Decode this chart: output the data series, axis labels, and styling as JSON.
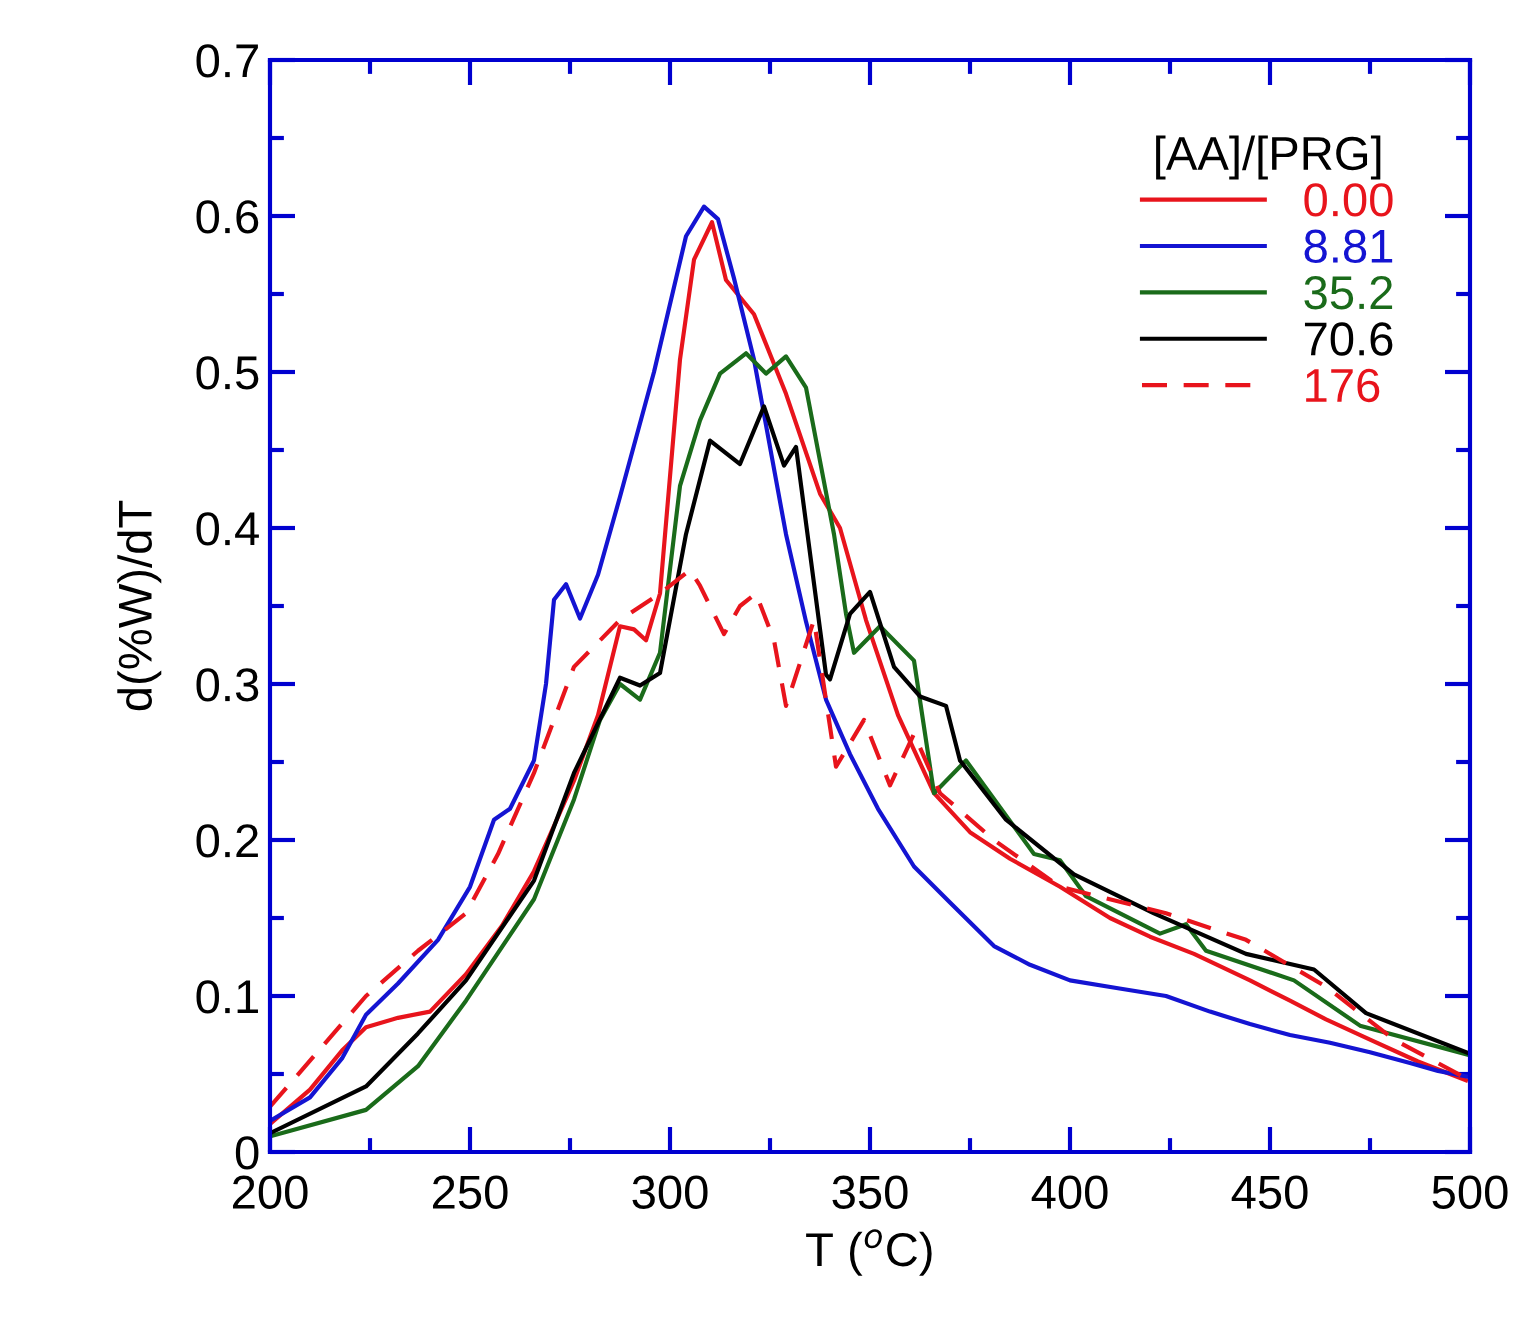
{
  "chart_data": {
    "type": "line",
    "xlabel": "T ($^{o}$C)",
    "ylabel": "d(%W)/dT",
    "legend_title": "[AA]/[PRG]",
    "legend": "top right",
    "grid": false,
    "marker": "none",
    "xlim": [
      200,
      500
    ],
    "xticks": [
      200,
      250,
      300,
      350,
      400,
      450,
      500
    ],
    "ylim": [
      0,
      0.7
    ],
    "yticks": [
      0,
      0.1,
      0.2,
      0.3,
      0.4,
      0.5,
      0.6,
      0.7
    ],
    "series": [
      {
        "name": "0.00",
        "color": "#e8141c",
        "line_style": "solid",
        "x": [
          200,
          210,
          218,
          224,
          232,
          240,
          249,
          258,
          266,
          276,
          282,
          287.5,
          291,
          294,
          297.5,
          302.5,
          306,
          310.5,
          314,
          321,
          329,
          337.5,
          342.5,
          349,
          357,
          366,
          375,
          385,
          397.5,
          410,
          420,
          431,
          445,
          455,
          464,
          475,
          487,
          499
        ],
        "values": [
          0.018,
          0.04,
          0.065,
          0.08,
          0.086,
          0.09,
          0.114,
          0.145,
          0.18,
          0.238,
          0.28,
          0.337,
          0.335,
          0.328,
          0.358,
          0.508,
          0.572,
          0.596,
          0.559,
          0.537,
          0.486,
          0.422,
          0.4,
          0.341,
          0.28,
          0.23,
          0.205,
          0.188,
          0.17,
          0.15,
          0.138,
          0.127,
          0.11,
          0.097,
          0.085,
          0.072,
          0.058,
          0.046
        ]
      },
      {
        "name": "8.81",
        "color": "#1414d2",
        "line_style": "solid",
        "x": [
          200,
          210,
          218,
          224,
          232,
          242,
          250,
          256,
          260,
          266,
          269,
          271,
          274,
          277.5,
          282,
          287.5,
          296,
          304,
          308.5,
          312,
          316,
          321,
          329,
          334,
          339,
          345,
          352,
          361,
          370,
          381,
          390,
          400,
          412,
          424,
          435,
          445,
          455,
          465,
          475,
          485,
          492,
          500
        ],
        "values": [
          0.02,
          0.035,
          0.06,
          0.088,
          0.108,
          0.136,
          0.17,
          0.213,
          0.22,
          0.251,
          0.3,
          0.354,
          0.364,
          0.342,
          0.37,
          0.42,
          0.5,
          0.587,
          0.606,
          0.598,
          0.56,
          0.508,
          0.396,
          0.34,
          0.29,
          0.255,
          0.22,
          0.183,
          0.16,
          0.132,
          0.12,
          0.11,
          0.105,
          0.1,
          0.09,
          0.082,
          0.075,
          0.07,
          0.064,
          0.057,
          0.052,
          0.048
        ]
      },
      {
        "name": "35.2",
        "color": "#1a6b1a",
        "line_style": "solid",
        "x": [
          200,
          224,
          237,
          249,
          266,
          276,
          282.5,
          287.5,
          292.5,
          297.5,
          302.5,
          307.5,
          312.5,
          319,
          324,
          329,
          334,
          341,
          344,
          346,
          352.5,
          361,
          366,
          374,
          391,
          397.5,
          404,
          422.5,
          429,
          434,
          456,
          472.5,
          500
        ],
        "values": [
          0.01,
          0.027,
          0.055,
          0.097,
          0.162,
          0.226,
          0.277,
          0.3,
          0.29,
          0.32,
          0.427,
          0.469,
          0.499,
          0.512,
          0.499,
          0.51,
          0.49,
          0.396,
          0.345,
          0.32,
          0.337,
          0.315,
          0.23,
          0.251,
          0.191,
          0.187,
          0.164,
          0.14,
          0.146,
          0.129,
          0.11,
          0.081,
          0.062
        ]
      },
      {
        "name": "70.6",
        "color": "#000000",
        "line_style": "solid",
        "x": [
          200,
          224,
          237,
          249,
          266,
          276,
          287.5,
          292.5,
          297.5,
          304,
          310,
          317.5,
          323.5,
          328.5,
          331.5,
          339,
          340,
          345,
          350,
          356,
          362.5,
          369,
          372.5,
          384,
          401,
          421,
          444,
          461,
          474,
          500
        ],
        "values": [
          0.012,
          0.042,
          0.076,
          0.11,
          0.174,
          0.243,
          0.304,
          0.299,
          0.307,
          0.396,
          0.456,
          0.441,
          0.478,
          0.44,
          0.452,
          0.306,
          0.303,
          0.345,
          0.359,
          0.311,
          0.292,
          0.286,
          0.251,
          0.213,
          0.178,
          0.153,
          0.127,
          0.117,
          0.089,
          0.063
        ]
      },
      {
        "name": "176",
        "color": "#e8141c",
        "line_style": "dashed",
        "x": [
          200,
          224,
          237,
          249,
          257,
          266,
          276,
          287.5,
          297.5,
          305,
          307.5,
          313.5,
          317.5,
          321.5,
          326,
          329,
          336,
          341.5,
          348.5,
          355,
          361,
          367.5,
          381,
          397.5,
          424,
          444,
          464,
          481,
          500
        ],
        "values": [
          0.029,
          0.1,
          0.129,
          0.153,
          0.191,
          0.243,
          0.311,
          0.341,
          0.358,
          0.373,
          0.363,
          0.332,
          0.35,
          0.358,
          0.328,
          0.286,
          0.341,
          0.247,
          0.277,
          0.235,
          0.268,
          0.23,
          0.2,
          0.17,
          0.153,
          0.136,
          0.106,
          0.072,
          0.046
        ]
      }
    ]
  }
}
